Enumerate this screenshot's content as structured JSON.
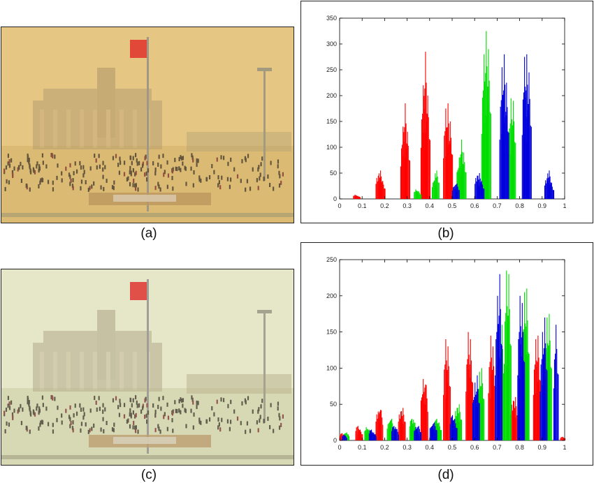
{
  "captions": {
    "a": "(a)",
    "b": "(b)",
    "c": "(c)",
    "d": "(d)"
  },
  "photos": {
    "a": {
      "tint": "#e2c07a",
      "sky": "#e6c886",
      "ground": "#d8b871"
    },
    "c": {
      "tint": "#dfe0c0",
      "sky": "#e8e8cc",
      "ground": "#d5d7b2"
    }
  },
  "chart_data": [
    {
      "id": "b",
      "type": "bar",
      "xlim": [
        0,
        1
      ],
      "ylim": [
        0,
        350
      ],
      "x_ticks": [
        "0",
        "0.1",
        "0.2",
        "0.3",
        "0.4",
        "0.5",
        "0.6",
        "0.7",
        "0.8",
        "0.9",
        "1"
      ],
      "y_ticks": [
        "0",
        "50",
        "100",
        "150",
        "200",
        "250",
        "300",
        "350"
      ],
      "series": [
        {
          "color": "#ff0000",
          "points": [
            [
              0.07,
              8
            ],
            [
              0.08,
              6
            ],
            [
              0.17,
              45
            ],
            [
              0.18,
              55
            ],
            [
              0.19,
              35
            ],
            [
              0.28,
              140
            ],
            [
              0.29,
              185
            ],
            [
              0.3,
              130
            ],
            [
              0.37,
              220
            ],
            [
              0.38,
              285
            ],
            [
              0.39,
              200
            ],
            [
              0.47,
              175
            ],
            [
              0.48,
              185
            ],
            [
              0.49,
              150
            ]
          ]
        },
        {
          "color": "#00dd00",
          "points": [
            [
              0.34,
              18
            ],
            [
              0.35,
              15
            ],
            [
              0.42,
              35
            ],
            [
              0.43,
              55
            ],
            [
              0.53,
              80
            ],
            [
              0.54,
              115
            ],
            [
              0.55,
              90
            ],
            [
              0.64,
              280
            ],
            [
              0.65,
              325
            ],
            [
              0.66,
              290
            ],
            [
              0.76,
              195
            ],
            [
              0.77,
              190
            ]
          ]
        },
        {
          "color": "#0000dd",
          "points": [
            [
              0.51,
              25
            ],
            [
              0.52,
              30
            ],
            [
              0.61,
              45
            ],
            [
              0.62,
              50
            ],
            [
              0.63,
              35
            ],
            [
              0.72,
              255
            ],
            [
              0.73,
              280
            ],
            [
              0.74,
              225
            ],
            [
              0.82,
              275
            ],
            [
              0.83,
              280
            ],
            [
              0.84,
              245
            ],
            [
              0.92,
              40
            ],
            [
              0.93,
              55
            ],
            [
              0.94,
              30
            ]
          ]
        }
      ]
    },
    {
      "id": "d",
      "type": "bar",
      "xlim": [
        0,
        1
      ],
      "ylim": [
        0,
        250
      ],
      "x_ticks": [
        "0",
        "0.1",
        "0.2",
        "0.3",
        "0.4",
        "0.5",
        "0.6",
        "0.7",
        "0.8",
        "0.9",
        "1"
      ],
      "y_ticks": [
        "0",
        "50",
        "100",
        "150",
        "200",
        "250"
      ],
      "series": [
        {
          "color": "#ff0000",
          "points": [
            [
              0.01,
              10
            ],
            [
              0.08,
              20
            ],
            [
              0.09,
              15
            ],
            [
              0.17,
              40
            ],
            [
              0.18,
              48
            ],
            [
              0.27,
              40
            ],
            [
              0.28,
              45
            ],
            [
              0.37,
              85
            ],
            [
              0.38,
              88
            ],
            [
              0.47,
              140
            ],
            [
              0.48,
              130
            ],
            [
              0.57,
              150
            ],
            [
              0.58,
              140
            ],
            [
              0.67,
              145
            ],
            [
              0.68,
              130
            ],
            [
              0.77,
              55
            ],
            [
              0.78,
              60
            ],
            [
              0.87,
              140
            ],
            [
              0.88,
              145
            ],
            [
              0.99,
              5
            ]
          ]
        },
        {
          "color": "#00dd00",
          "points": [
            [
              0.03,
              12
            ],
            [
              0.12,
              18
            ],
            [
              0.13,
              15
            ],
            [
              0.22,
              25
            ],
            [
              0.23,
              30
            ],
            [
              0.32,
              30
            ],
            [
              0.33,
              28
            ],
            [
              0.43,
              30
            ],
            [
              0.44,
              25
            ],
            [
              0.52,
              45
            ],
            [
              0.53,
              50
            ],
            [
              0.62,
              95
            ],
            [
              0.63,
              100
            ],
            [
              0.72,
              160
            ],
            [
              0.74,
              235
            ],
            [
              0.75,
              230
            ],
            [
              0.82,
              205
            ],
            [
              0.83,
              210
            ],
            [
              0.92,
              170
            ],
            [
              0.93,
              175
            ]
          ]
        },
        {
          "color": "#0000dd",
          "points": [
            [
              0.02,
              8
            ],
            [
              0.14,
              15
            ],
            [
              0.15,
              12
            ],
            [
              0.24,
              20
            ],
            [
              0.25,
              18
            ],
            [
              0.34,
              18
            ],
            [
              0.35,
              20
            ],
            [
              0.41,
              22
            ],
            [
              0.42,
              25
            ],
            [
              0.5,
              35
            ],
            [
              0.51,
              30
            ],
            [
              0.6,
              80
            ],
            [
              0.61,
              90
            ],
            [
              0.7,
              200
            ],
            [
              0.71,
              230
            ],
            [
              0.8,
              200
            ],
            [
              0.81,
              190
            ],
            [
              0.9,
              150
            ],
            [
              0.91,
              170
            ],
            [
              0.96,
              160
            ]
          ]
        }
      ]
    }
  ]
}
